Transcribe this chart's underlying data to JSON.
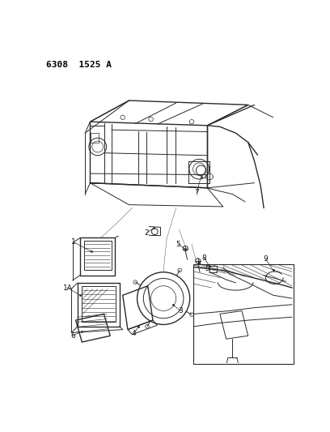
{
  "title_text": "6308  1525 A",
  "background_color": "#ffffff",
  "fig_width": 4.08,
  "fig_height": 5.33,
  "dpi": 100,
  "line_color": "#2a2a2a",
  "label_fontsize": 6.5,
  "label_color": "#111111"
}
